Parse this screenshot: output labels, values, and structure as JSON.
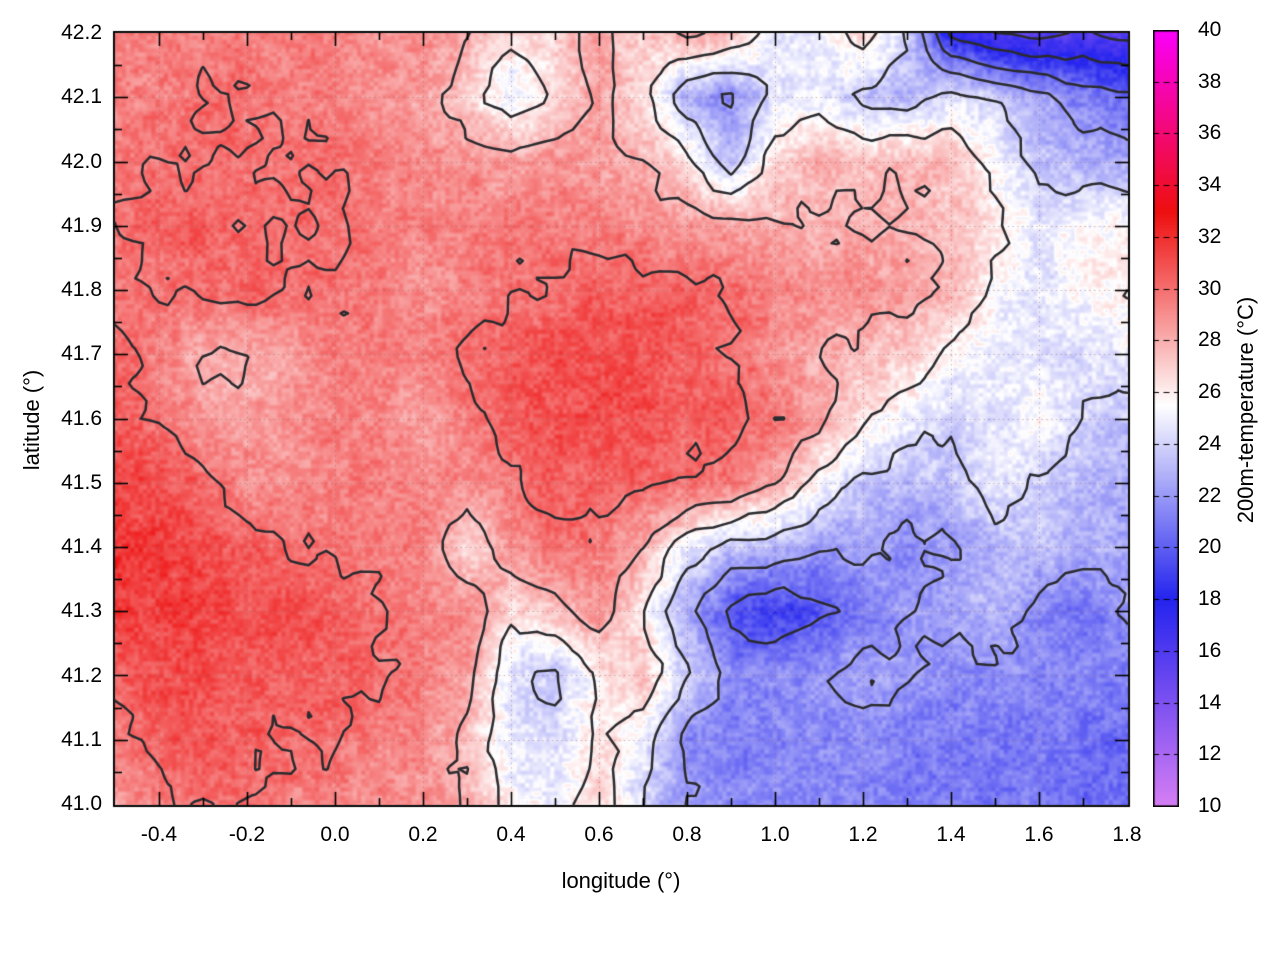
{
  "figure": {
    "background": "#ffffff",
    "border_color": "#000000",
    "grid_color": "rgba(150,105,105,0.55)"
  },
  "axes": {
    "xlabel": "longitude (°)",
    "ylabel": "latitude (°)",
    "xlim": [
      -0.5,
      1.8
    ],
    "ylim": [
      41.0,
      42.2
    ],
    "xticks": [
      {
        "value": -0.4,
        "label": "-0.4"
      },
      {
        "value": -0.2,
        "label": "-0.2"
      },
      {
        "value": 0.0,
        "label": "0.0"
      },
      {
        "value": 0.2,
        "label": "0.2"
      },
      {
        "value": 0.4,
        "label": "0.4"
      },
      {
        "value": 0.6,
        "label": "0.6"
      },
      {
        "value": 0.8,
        "label": "0.8"
      },
      {
        "value": 1.0,
        "label": "1.0"
      },
      {
        "value": 1.2,
        "label": "1.2"
      },
      {
        "value": 1.4,
        "label": "1.4"
      },
      {
        "value": 1.6,
        "label": "1.6"
      },
      {
        "value": 1.8,
        "label": "1.8"
      }
    ],
    "yticks": [
      {
        "value": 41.0,
        "label": "41.0"
      },
      {
        "value": 41.1,
        "label": "41.1"
      },
      {
        "value": 41.2,
        "label": "41.2"
      },
      {
        "value": 41.3,
        "label": "41.3"
      },
      {
        "value": 41.4,
        "label": "41.4"
      },
      {
        "value": 41.5,
        "label": "41.5"
      },
      {
        "value": 41.6,
        "label": "41.6"
      },
      {
        "value": 41.7,
        "label": "41.7"
      },
      {
        "value": 41.8,
        "label": "41.8"
      },
      {
        "value": 41.9,
        "label": "41.9"
      },
      {
        "value": 42.0,
        "label": "42.0"
      },
      {
        "value": 42.1,
        "label": "42.1"
      },
      {
        "value": 42.2,
        "label": "42.2"
      }
    ],
    "x_minor_step": 0.1,
    "y_minor_step": 0.05
  },
  "colorbar": {
    "label": "200m-temperature (°C)",
    "min": 10,
    "max": 40,
    "ticks": [
      {
        "value": 40,
        "label": "40"
      },
      {
        "value": 38,
        "label": "38"
      },
      {
        "value": 36,
        "label": "36"
      },
      {
        "value": 34,
        "label": "34"
      },
      {
        "value": 32,
        "label": "32"
      },
      {
        "value": 30,
        "label": "30"
      },
      {
        "value": 28,
        "label": "28"
      },
      {
        "value": 26,
        "label": "26"
      },
      {
        "value": 24,
        "label": "24"
      },
      {
        "value": 22,
        "label": "22"
      },
      {
        "value": 20,
        "label": "20"
      },
      {
        "value": 18,
        "label": "18"
      },
      {
        "value": 16,
        "label": "16"
      },
      {
        "value": 14,
        "label": "14"
      },
      {
        "value": 12,
        "label": "12"
      },
      {
        "value": 10,
        "label": "10"
      }
    ]
  },
  "chart_data": {
    "type": "heatmap",
    "title": "",
    "xlabel": "longitude (°)",
    "ylabel": "latitude (°)",
    "colorbar_label": "200m-temperature (°C)",
    "xlim": [
      -0.5,
      1.8
    ],
    "ylim": [
      41.0,
      42.2
    ],
    "value_range": [
      10,
      40
    ],
    "x": [
      -0.5,
      -0.4,
      -0.3,
      -0.2,
      -0.1,
      0.0,
      0.1,
      0.2,
      0.3,
      0.4,
      0.5,
      0.6,
      0.7,
      0.8,
      0.9,
      1.0,
      1.1,
      1.2,
      1.3,
      1.4,
      1.5,
      1.6,
      1.7,
      1.8
    ],
    "y": [
      42.2,
      42.1,
      42.0,
      41.9,
      41.8,
      41.7,
      41.6,
      41.5,
      41.4,
      41.3,
      41.2,
      41.1,
      41.0
    ],
    "y_order": "north-to-south",
    "values": [
      [
        29.5,
        29.5,
        29.5,
        29.5,
        29.5,
        29.5,
        29.0,
        29.0,
        28.0,
        26.5,
        27.0,
        28.5,
        27.0,
        28.5,
        27.5,
        25.0,
        24.5,
        27.0,
        24.0,
        17.5,
        16.0,
        15.5,
        16.0,
        15.5
      ],
      [
        29.5,
        29.5,
        30.0,
        30.0,
        29.5,
        29.5,
        29.0,
        28.5,
        27.0,
        24.5,
        26.5,
        28.5,
        26.5,
        22.5,
        21.5,
        24.5,
        25.0,
        23.5,
        23.0,
        24.5,
        24.0,
        22.5,
        21.0,
        20.5
      ],
      [
        29.5,
        30.0,
        30.0,
        30.0,
        30.0,
        30.0,
        29.5,
        29.0,
        29.0,
        28.5,
        29.0,
        28.5,
        28.0,
        26.5,
        23.0,
        27.0,
        28.0,
        27.5,
        28.0,
        27.5,
        25.5,
        23.5,
        23.0,
        22.5
      ],
      [
        30.0,
        30.5,
        30.5,
        30.0,
        30.0,
        30.0,
        29.5,
        29.5,
        29.5,
        29.5,
        29.5,
        29.5,
        29.0,
        28.5,
        28.5,
        28.0,
        28.0,
        28.0,
        28.0,
        27.5,
        26.5,
        24.5,
        25.5,
        26.0
      ],
      [
        29.5,
        30.0,
        30.0,
        30.5,
        30.0,
        30.0,
        29.5,
        29.0,
        29.5,
        30.0,
        30.0,
        30.5,
        30.5,
        30.5,
        30.0,
        29.5,
        29.0,
        29.0,
        28.5,
        28.0,
        25.5,
        24.5,
        25.5,
        26.0
      ],
      [
        30.5,
        29.5,
        28.0,
        28.0,
        28.5,
        29.5,
        29.5,
        29.5,
        30.0,
        30.5,
        31.0,
        31.0,
        31.0,
        30.5,
        30.0,
        29.0,
        28.0,
        27.5,
        27.0,
        25.5,
        25.0,
        24.5,
        24.5,
        25.0
      ],
      [
        30.5,
        30.0,
        28.5,
        28.5,
        29.0,
        29.5,
        29.0,
        28.5,
        29.5,
        30.5,
        31.0,
        31.0,
        31.0,
        30.5,
        30.5,
        30.0,
        28.5,
        26.5,
        25.0,
        24.0,
        24.5,
        25.5,
        24.0,
        23.5
      ],
      [
        31.5,
        31.0,
        30.5,
        29.0,
        29.0,
        29.5,
        29.5,
        29.5,
        29.0,
        30.0,
        30.5,
        30.5,
        30.5,
        30.0,
        29.5,
        28.0,
        25.5,
        23.5,
        23.0,
        23.5,
        25.0,
        24.0,
        23.0,
        22.5
      ],
      [
        32.0,
        31.5,
        31.0,
        30.5,
        30.0,
        30.0,
        29.5,
        29.5,
        26.5,
        29.0,
        30.0,
        29.5,
        28.0,
        25.0,
        23.5,
        23.0,
        22.0,
        22.5,
        21.5,
        22.0,
        23.0,
        23.5,
        23.0,
        22.5
      ],
      [
        31.5,
        31.5,
        31.5,
        31.0,
        31.0,
        30.5,
        30.0,
        29.5,
        29.5,
        26.5,
        27.5,
        29.0,
        26.0,
        22.5,
        19.5,
        18.5,
        19.5,
        21.0,
        22.0,
        22.5,
        23.0,
        21.5,
        20.5,
        22.0
      ],
      [
        30.5,
        31.0,
        31.0,
        30.5,
        30.5,
        30.5,
        30.0,
        29.5,
        28.5,
        24.5,
        23.5,
        26.0,
        27.5,
        24.0,
        21.5,
        21.5,
        22.0,
        22.5,
        22.0,
        21.5,
        21.5,
        21.5,
        21.5,
        21.0
      ],
      [
        29.5,
        30.5,
        31.0,
        30.5,
        30.0,
        30.0,
        29.5,
        29.0,
        27.5,
        24.5,
        24.5,
        26.5,
        25.0,
        21.5,
        21.0,
        21.5,
        21.5,
        21.5,
        21.0,
        21.0,
        21.0,
        21.0,
        20.5,
        20.5
      ],
      [
        28.5,
        29.5,
        30.0,
        30.0,
        29.5,
        29.5,
        29.0,
        29.0,
        28.0,
        25.5,
        25.0,
        27.0,
        24.0,
        22.0,
        21.5,
        21.5,
        21.5,
        21.5,
        21.0,
        21.0,
        21.0,
        21.0,
        20.5,
        20.5
      ]
    ],
    "palette": [
      [
        10.0,
        214,
        126,
        244
      ],
      [
        18.0,
        36,
        36,
        238
      ],
      [
        25.5,
        255,
        255,
        255
      ],
      [
        33.0,
        238,
        15,
        15
      ],
      [
        40.0,
        250,
        0,
        250
      ]
    ],
    "contour_levels": [
      16,
      18,
      20,
      22,
      24,
      26,
      28,
      30
    ],
    "contour_color": "#2b2b2f",
    "grid_on": true,
    "legend_position": "right-colorbar"
  }
}
